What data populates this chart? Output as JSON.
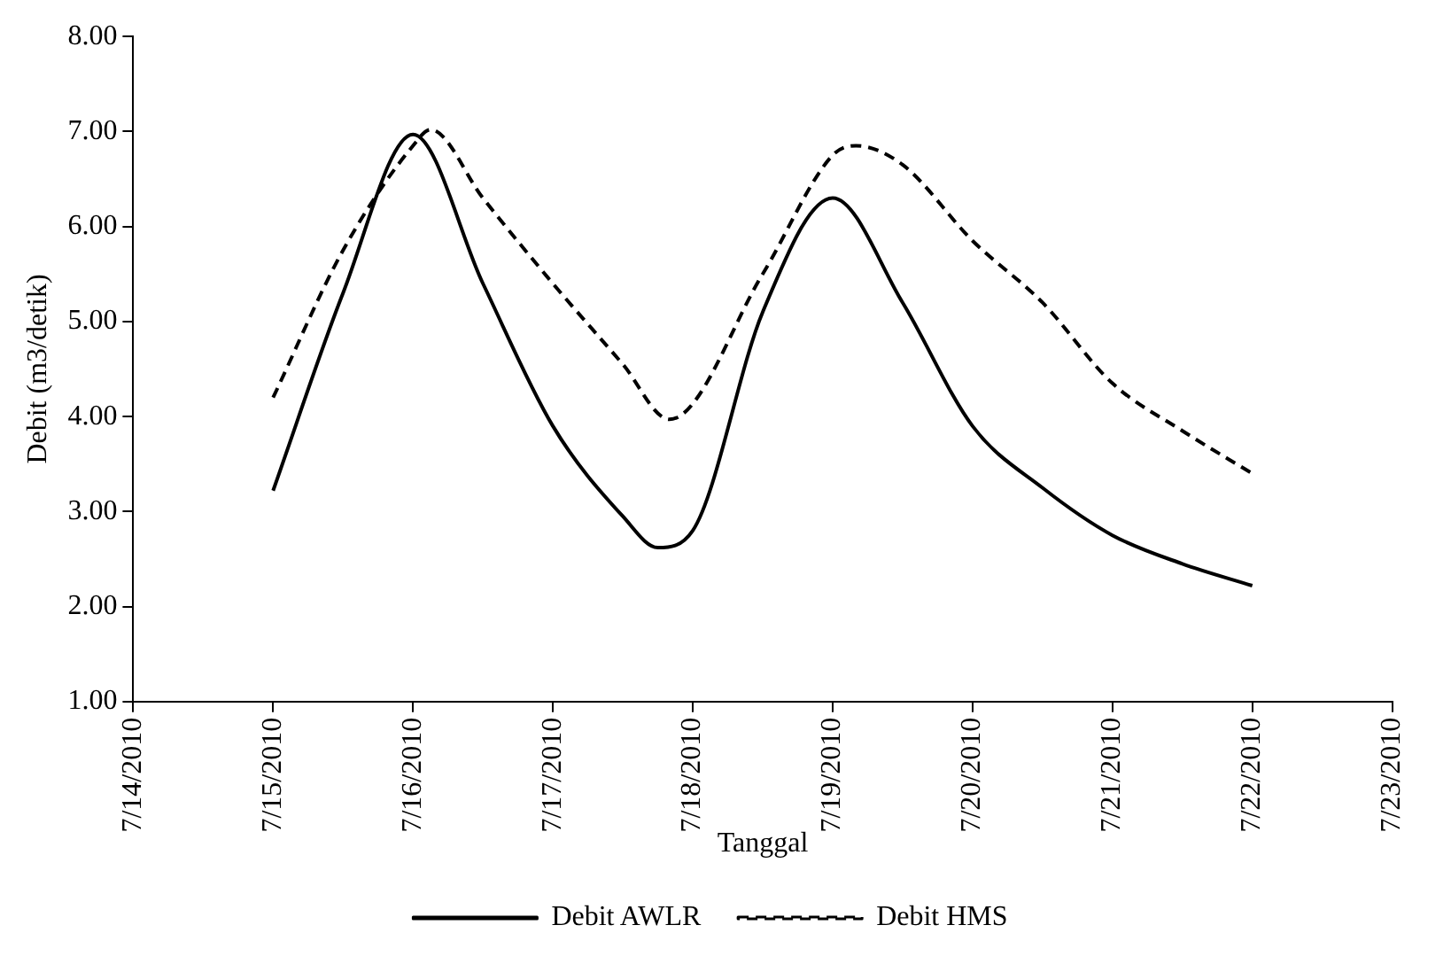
{
  "chart_data": {
    "type": "line",
    "xlabel": "Tanggal",
    "ylabel": "Debit (m3/detik)",
    "xlim": [
      "2010-07-14",
      "2010-07-23"
    ],
    "xticks": [
      {
        "value": "2010-07-14",
        "label": "7/14/2010"
      },
      {
        "value": "2010-07-15",
        "label": "7/15/2010"
      },
      {
        "value": "2010-07-16",
        "label": "7/16/2010"
      },
      {
        "value": "2010-07-17",
        "label": "7/17/2010"
      },
      {
        "value": "2010-07-18",
        "label": "7/18/2010"
      },
      {
        "value": "2010-07-19",
        "label": "7/19/2010"
      },
      {
        "value": "2010-07-20",
        "label": "7/20/2010"
      },
      {
        "value": "2010-07-21",
        "label": "7/21/2010"
      },
      {
        "value": "2010-07-22",
        "label": "7/22/2010"
      },
      {
        "value": "2010-07-23",
        "label": "7/23/2010"
      }
    ],
    "ylim": [
      1,
      8
    ],
    "yticks": [
      {
        "value": 1,
        "label": "1.00"
      },
      {
        "value": 2,
        "label": "2.00"
      },
      {
        "value": 3,
        "label": "3.00"
      },
      {
        "value": 4,
        "label": "4.00"
      },
      {
        "value": 5,
        "label": "5.00"
      },
      {
        "value": 6,
        "label": "6.00"
      },
      {
        "value": 7,
        "label": "7.00"
      },
      {
        "value": 8,
        "label": "8.00"
      }
    ],
    "grid": false,
    "legend": "bottom",
    "marker": "none",
    "series": [
      {
        "name": "Debit AWLR",
        "color": "#000000",
        "line_style": "solid",
        "x": [
          "2010-07-15",
          "2010-07-15T12:00",
          "2010-07-16",
          "2010-07-16T12:00",
          "2010-07-17",
          "2010-07-17T12:00",
          "2010-07-17T18:00",
          "2010-07-18",
          "2010-07-18T12:00",
          "2010-07-19",
          "2010-07-19T12:00",
          "2010-07-20",
          "2010-07-20T12:00",
          "2010-07-21",
          "2010-07-21T12:00",
          "2010-07-22"
        ],
        "values": [
          3.22,
          5.3,
          6.97,
          5.4,
          3.9,
          2.95,
          2.62,
          2.8,
          5.1,
          6.3,
          5.2,
          3.9,
          3.25,
          2.75,
          2.45,
          2.22
        ]
      },
      {
        "name": "Debit HMS",
        "color": "#000000",
        "line_style": "dashed",
        "x": [
          "2010-07-15",
          "2010-07-15T12:00",
          "2010-07-16",
          "2010-07-16T03:00",
          "2010-07-16T12:00",
          "2010-07-17",
          "2010-07-17T12:00",
          "2010-07-17T20:00",
          "2010-07-18T12:00",
          "2010-07-19",
          "2010-07-19T04:00",
          "2010-07-19T12:00",
          "2010-07-20",
          "2010-07-20T12:00",
          "2010-07-21",
          "2010-07-21T12:00",
          "2010-07-22"
        ],
        "values": [
          4.2,
          5.75,
          6.85,
          7.02,
          6.3,
          5.4,
          4.55,
          3.97,
          5.5,
          6.75,
          6.85,
          6.65,
          5.85,
          5.2,
          4.35,
          3.85,
          3.4
        ]
      }
    ]
  }
}
